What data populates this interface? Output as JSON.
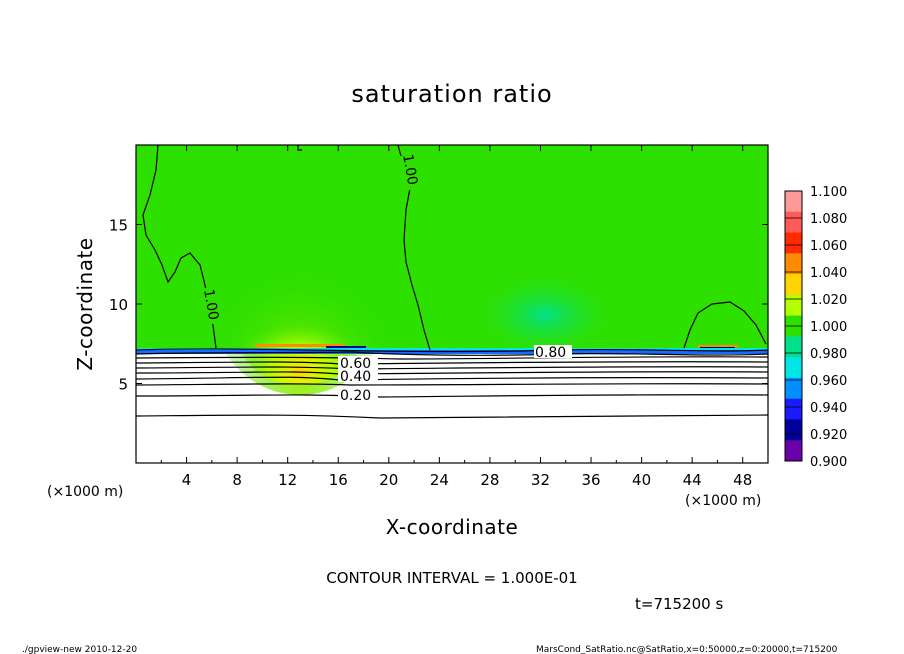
{
  "chart_data": {
    "type": "heatmap",
    "title": "saturation ratio",
    "xlabel": "X-coordinate",
    "ylabel": "Z-coordinate",
    "x_unit_left": "(×1000 m)",
    "x_unit_right": "(×1000 m)",
    "xlim": [
      0,
      50
    ],
    "ylim": [
      0,
      20
    ],
    "xticks": [
      "4",
      "8",
      "12",
      "16",
      "20",
      "24",
      "28",
      "32",
      "36",
      "40",
      "44",
      "48"
    ],
    "yticks": [
      "5",
      "10",
      "15"
    ],
    "colorbar": {
      "levels": [
        "1.100",
        "1.080",
        "1.060",
        "1.040",
        "1.020",
        "1.000",
        "0.980",
        "0.960",
        "0.940",
        "0.920",
        "0.900"
      ],
      "colors": [
        "#ff9a9a",
        "#ff5a5a",
        "#ff2a00",
        "#ff8c00",
        "#ffd400",
        "#b4ff00",
        "#2ee000",
        "#00e08a",
        "#00e5e5",
        "#0090ff",
        "#1a1aff",
        "#00009a",
        "#6a00a8"
      ]
    },
    "contour_labels": [
      "1.00",
      "1.00",
      "0.80",
      "0.60",
      "0.40",
      "0.20"
    ],
    "contour_interval": "CONTOUR INTERVAL = 1.000E-01",
    "time": "t=715200 s"
  },
  "footer": {
    "left": "./gpview-new   2010-12-20",
    "right": "MarsCond_SatRatio.nc@SatRatio,x=0:50000,z=0:20000,t=715200"
  }
}
